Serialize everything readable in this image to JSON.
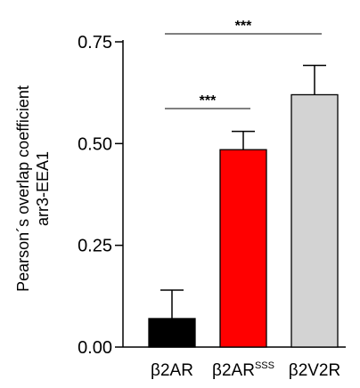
{
  "chart_data": {
    "type": "bar",
    "categories": [
      "β2AR",
      "β2AR",
      "β2V2R"
    ],
    "category_superscripts": [
      "",
      "SSS",
      ""
    ],
    "values": [
      0.07,
      0.485,
      0.62
    ],
    "errors": [
      0.07,
      0.045,
      0.072
    ],
    "colors": [
      "#000000",
      "#ff0000",
      "#d3d3d3"
    ],
    "ylabel_lines": [
      "Pearson´s overlap coefficient",
      "arr3-EEA1"
    ],
    "ylim": [
      0,
      0.75
    ],
    "yticks": [
      0,
      0.25,
      0.5,
      0.75
    ],
    "ytick_labels": [
      "0.00",
      "0.25",
      "0.50",
      "0.75"
    ],
    "grid": false,
    "significance": [
      {
        "from": 0,
        "to": 1,
        "label": "***"
      },
      {
        "from": 0,
        "to": 2,
        "label": "***"
      }
    ]
  }
}
